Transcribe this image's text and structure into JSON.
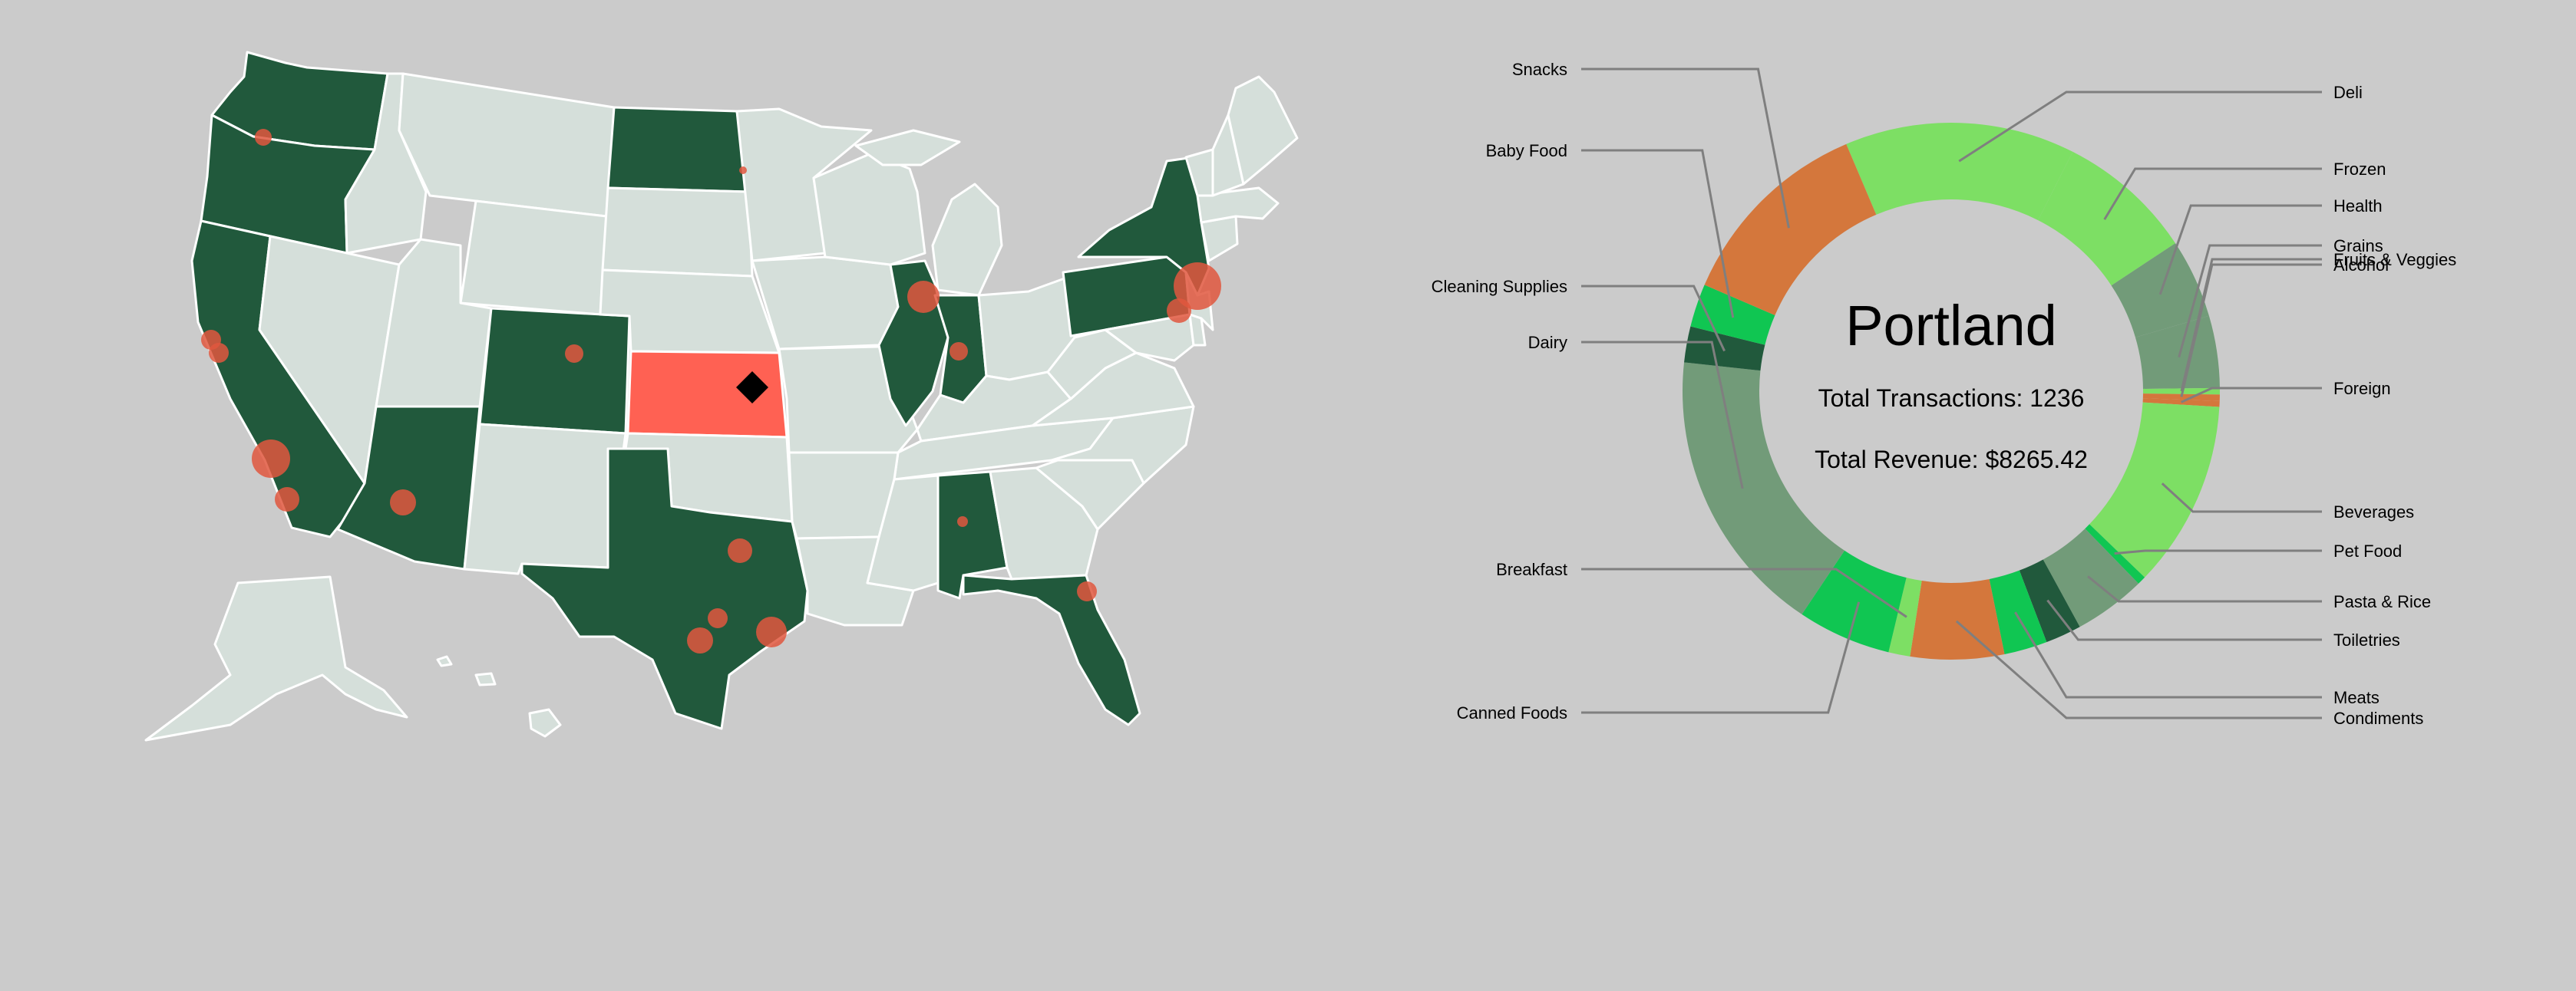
{
  "colors": {
    "background": "#cbcbcb",
    "state_default": "#d5dfda",
    "state_highlight": "#21593c",
    "state_selected": "#ff6153",
    "state_border": "#ffffff",
    "bubble": "#e0573e",
    "marker": "#000000",
    "leader": "#7f7f7f"
  },
  "map": {
    "highlighted_states": [
      "Washington",
      "Oregon",
      "California",
      "Arizona",
      "Colorado",
      "North Dakota",
      "Texas",
      "Illinois",
      "Indiana",
      "Alabama",
      "Florida",
      "New York",
      "Pennsylvania"
    ],
    "selected_state": "Kansas",
    "selected_marker": "diamond"
  },
  "chart_data": {
    "type": "pie",
    "title": "Portland",
    "stats": [
      "Total Transactions: 1236",
      "Total Revenue: $8265.42"
    ],
    "categories": [
      "Deli",
      "Frozen",
      "Health",
      "Grains",
      "Fruits & Veggies",
      "Alcohol",
      "Foreign",
      "Beverages",
      "Pet Food",
      "Pasta & Rice",
      "Toiletries",
      "Meats",
      "Condiments",
      "Breakfast",
      "Canned Foods",
      "Dairy",
      "Cleaning Supplies",
      "Baby Food",
      "Snacks"
    ],
    "values": [
      0.16,
      0.095,
      0.055,
      0.05,
      0.0045,
      0.0045,
      0.004,
      0.13,
      0.006,
      0.05,
      0.025,
      0.03,
      0.065,
      0.015,
      0.065,
      0.2,
      0.025,
      0.03,
      0.14
    ],
    "segment_colors": [
      "#7ddf64",
      "#7ddf64",
      "#729b79",
      "#729b79",
      "#7ddf64",
      "#d4773c",
      "#d4773c",
      "#7ddf64",
      "#10c652",
      "#729b79",
      "#21593c",
      "#10c652",
      "#d4773c",
      "#7ddf64",
      "#10c652",
      "#729b79",
      "#21593c",
      "#10c652",
      "#d4773c"
    ],
    "start_angle_deg": -23
  }
}
